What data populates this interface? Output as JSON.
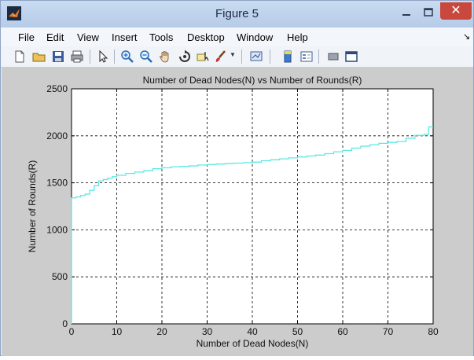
{
  "window": {
    "title": "Figure 5",
    "close_label": "✕"
  },
  "menu": [
    "File",
    "Edit",
    "View",
    "Insert",
    "Tools",
    "Desktop",
    "Window",
    "Help"
  ],
  "toolbar": {
    "icons": [
      "new-figure-icon",
      "open-file-icon",
      "save-icon",
      "print-icon",
      "select-arrow-icon",
      "zoom-in-icon",
      "zoom-out-icon",
      "pan-hand-icon",
      "rotate-3d-icon",
      "data-cursor-icon",
      "brush-icon",
      "insert-colorbar-icon",
      "insert-legend-icon",
      "hide-plot-tools-icon",
      "show-plot-tools-icon"
    ],
    "overflow_glyph": "↘"
  },
  "chart_data": {
    "type": "line",
    "title": "Number of Dead Nodes(N) vs Number of Rounds(R)",
    "xlabel": "Number of Dead Nodes(N)",
    "ylabel": "Number of Rounds(R)",
    "xlim": [
      0,
      80
    ],
    "ylim": [
      0,
      2500
    ],
    "xticks": [
      "0",
      "10",
      "20",
      "30",
      "40",
      "50",
      "60",
      "70",
      "80"
    ],
    "yticks": [
      "0",
      "500",
      "1000",
      "1500",
      "2000",
      "2500"
    ],
    "grid": true,
    "line_color": "#5ee8e3",
    "series": [
      {
        "step": true,
        "x": [
          0,
          1,
          2,
          3,
          4,
          5,
          6,
          7,
          8,
          9,
          10,
          12,
          14,
          16,
          18,
          20,
          22,
          24,
          26,
          28,
          30,
          32,
          34,
          36,
          38,
          40,
          42,
          44,
          46,
          48,
          50,
          52,
          54,
          56,
          58,
          60,
          62,
          64,
          66,
          68,
          70,
          72,
          74,
          76,
          78,
          79,
          80
        ],
        "y": [
          1340,
          1350,
          1365,
          1380,
          1420,
          1470,
          1520,
          1535,
          1550,
          1565,
          1580,
          1600,
          1615,
          1630,
          1650,
          1660,
          1670,
          1675,
          1680,
          1690,
          1695,
          1700,
          1705,
          1710,
          1715,
          1720,
          1735,
          1745,
          1755,
          1765,
          1775,
          1785,
          1795,
          1810,
          1830,
          1845,
          1870,
          1890,
          1905,
          1920,
          1930,
          1940,
          1975,
          2005,
          2015,
          2095,
          2095
        ]
      }
    ]
  }
}
